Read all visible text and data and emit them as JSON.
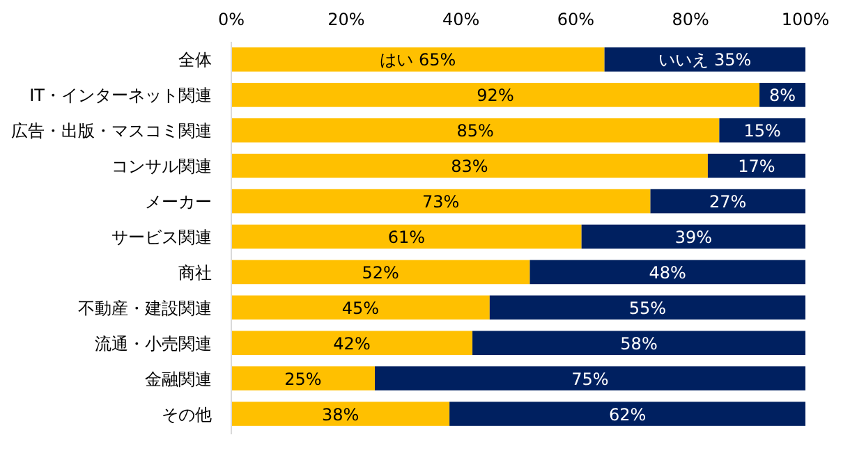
{
  "chart_data": {
    "type": "bar",
    "orientation": "horizontal",
    "stacked": true,
    "categories": [
      "全体",
      "IT・インターネット関連",
      "広告・出版・マスコミ関連",
      "コンサル関連",
      "メーカー",
      "サービス関連",
      "商社",
      "不動産・建設関連",
      "流通・小売関連",
      "金融関連",
      "その他"
    ],
    "series": [
      {
        "name": "はい",
        "color": "#ffc000",
        "values": [
          65,
          92,
          85,
          83,
          73,
          61,
          52,
          45,
          42,
          25,
          38
        ],
        "value_labels": [
          "65%",
          "92%",
          "85%",
          "83%",
          "73%",
          "61%",
          "52%",
          "45%",
          "42%",
          "25%",
          "38%"
        ]
      },
      {
        "name": "いいえ",
        "color": "#002060",
        "values": [
          35,
          8,
          15,
          17,
          27,
          39,
          48,
          55,
          58,
          75,
          62
        ],
        "value_labels": [
          "35%",
          "8%",
          "15%",
          "17%",
          "27%",
          "39%",
          "48%",
          "55%",
          "58%",
          "75%",
          "62%"
        ]
      }
    ],
    "xlim": [
      0,
      100
    ],
    "xticks": [
      {
        "value": 0,
        "label": "0%"
      },
      {
        "value": 20,
        "label": "20%"
      },
      {
        "value": 40,
        "label": "40%"
      },
      {
        "value": 60,
        "label": "60%"
      },
      {
        "value": 80,
        "label": "80%"
      },
      {
        "value": 100,
        "label": "100%"
      }
    ]
  }
}
